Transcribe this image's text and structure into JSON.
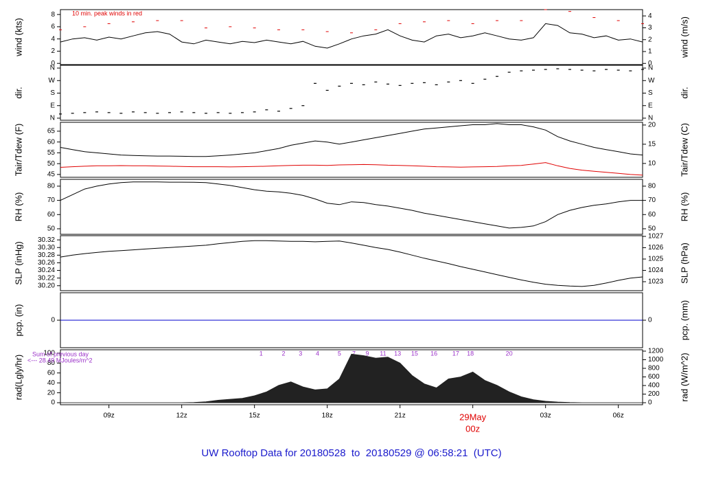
{
  "chart_data": {
    "title": "UW Rooftop Data for 20180528  to  20180529 @ 06:58:21  (UTC)",
    "xlim": [
      7,
      31
    ],
    "xticks": [
      {
        "value": 9,
        "label": "09z"
      },
      {
        "value": 12,
        "label": "12z"
      },
      {
        "value": 15,
        "label": "15z"
      },
      {
        "value": 18,
        "label": "18z"
      },
      {
        "value": 21,
        "label": "21z"
      },
      {
        "value": 24,
        "label": "00z"
      },
      {
        "value": 27,
        "label": "03z"
      },
      {
        "value": 30,
        "label": "06z"
      }
    ],
    "date_annotation": {
      "text": "29May",
      "x": 24,
      "color": "#e00000"
    },
    "x": [
      7,
      7.5,
      8,
      8.5,
      9,
      9.5,
      10,
      10.5,
      11,
      11.5,
      12,
      12.5,
      13,
      13.5,
      14,
      14.5,
      15,
      15.5,
      16,
      16.5,
      17,
      17.5,
      18,
      18.5,
      19,
      19.5,
      20,
      20.5,
      21,
      21.5,
      22,
      22.5,
      23,
      23.5,
      24,
      24.5,
      25,
      25.5,
      26,
      26.5,
      27,
      27.5,
      28,
      28.5,
      29,
      29.5,
      30,
      30.5,
      31
    ],
    "panels": [
      {
        "type": "line",
        "ylabel": "wind (kts)",
        "y2label": "wind (m/s)",
        "annotation": "10 min. peak winds in red",
        "ylim": [
          -0.2,
          8.8
        ],
        "yticks": [
          0,
          2,
          4,
          6,
          8
        ],
        "y2lim": [
          -0.1,
          4.53
        ],
        "y2ticks": [
          0,
          1,
          2,
          3,
          4
        ],
        "series": [
          {
            "type": "line",
            "color": "#000000",
            "values": [
              3.5,
              4,
              4.2,
              3.8,
              4.3,
              4,
              4.5,
              5,
              5.2,
              4.8,
              3.5,
              3.2,
              3.8,
              3.5,
              3.2,
              3.6,
              3.4,
              3.8,
              3.5,
              3.2,
              3.6,
              2.8,
              2.5,
              3.2,
              4,
              4.5,
              4.8,
              5.5,
              4.5,
              3.8,
              3.5,
              4.5,
              4.8,
              4.2,
              4.5,
              5,
              4.5,
              4,
              3.8,
              4.2,
              6.5,
              6.2,
              5,
              4.8,
              4.2,
              4.5,
              3.8,
              4,
              3.5
            ]
          },
          {
            "type": "points",
            "color": "#e00000",
            "x": [
              7,
              8,
              9,
              10,
              11,
              12,
              13,
              14,
              15,
              16,
              17,
              18,
              19,
              20,
              21,
              22,
              23,
              24,
              25,
              26,
              27,
              28,
              29,
              30,
              31
            ],
            "values": [
              5.5,
              6,
              6.5,
              6.8,
              7,
              7,
              5.8,
              6,
              5.8,
              5.5,
              5.5,
              5.2,
              5,
              5.5,
              6.5,
              6.8,
              7,
              6.5,
              7,
              7,
              8.8,
              8.5,
              7.5,
              7,
              6.5
            ]
          }
        ]
      },
      {
        "type": "scatter",
        "ylabel": "dir.",
        "y2label": "dir.",
        "ylim": [
          -15,
          380
        ],
        "yticks": [
          {
            "value": 0,
            "label": "N"
          },
          {
            "value": 90,
            "label": "E"
          },
          {
            "value": 180,
            "label": "S"
          },
          {
            "value": 270,
            "label": "W"
          },
          {
            "value": 360,
            "label": "N"
          }
        ],
        "y2lim": [
          -15,
          380
        ],
        "y2ticks": [
          {
            "value": 0,
            "label": "N"
          },
          {
            "value": 90,
            "label": "E"
          },
          {
            "value": 180,
            "label": "S"
          },
          {
            "value": 270,
            "label": "W"
          },
          {
            "value": 360,
            "label": "N"
          }
        ],
        "series": [
          {
            "type": "points",
            "color": "#000000",
            "values": [
              30,
              35,
              40,
              45,
              40,
              35,
              45,
              40,
              35,
              40,
              45,
              40,
              35,
              40,
              35,
              40,
              45,
              60,
              50,
              70,
              90,
              250,
              200,
              230,
              250,
              240,
              260,
              245,
              235,
              250,
              255,
              240,
              260,
              270,
              250,
              280,
              300,
              330,
              340,
              345,
              350,
              355,
              350,
              345,
              340,
              350,
              345,
              340,
              350
            ]
          }
        ]
      },
      {
        "type": "line",
        "ylabel": "Tair/Tdew (F)",
        "y2label": "Tair/Tdew (C)",
        "ylim": [
          43.7,
          69.1
        ],
        "yticks": [
          45,
          50,
          55,
          60,
          65
        ],
        "y2lim": [
          6.4,
          20.7
        ],
        "y2ticks": [
          10,
          15,
          20
        ],
        "series": [
          {
            "type": "line",
            "color": "#000000",
            "values": [
              57.5,
              56.5,
              55.5,
              55,
              54.5,
              54,
              53.8,
              53.6,
              53.5,
              53.5,
              53.4,
              53.3,
              53.3,
              53.6,
              54,
              54.5,
              55,
              56,
              57,
              58.5,
              59.5,
              60.5,
              60,
              59,
              60,
              61,
              62,
              63,
              64,
              65,
              66,
              66.5,
              67,
              67.5,
              68,
              68,
              68.5,
              68,
              68,
              67,
              65.5,
              62.5,
              60.5,
              59,
              57.5,
              56.5,
              55.5,
              54.5,
              54
            ]
          },
          {
            "type": "line",
            "color": "#e00000",
            "values": [
              48.3,
              48.6,
              48.8,
              49,
              49,
              49.1,
              49,
              49,
              48.9,
              48.8,
              48.7,
              48.6,
              48.6,
              48.6,
              48.5,
              48.6,
              48.7,
              48.8,
              49,
              49.2,
              49.3,
              49.3,
              49.2,
              49.4,
              49.5,
              49.6,
              49.5,
              49.3,
              49.2,
              49,
              48.8,
              48.6,
              48.5,
              48.4,
              48.5,
              48.6,
              48.7,
              49,
              49.2,
              49.8,
              50.5,
              49,
              47.8,
              47,
              46.5,
              46,
              45.5,
              45,
              44.7
            ]
          }
        ]
      },
      {
        "type": "line",
        "ylabel": "RH (%)",
        "y2label": "RH (%)",
        "ylim": [
          46.1,
          84.8
        ],
        "yticks": [
          50,
          60,
          70,
          80
        ],
        "y2lim": [
          46.1,
          84.8
        ],
        "y2ticks": [
          50,
          60,
          70,
          80
        ],
        "series": [
          {
            "type": "line",
            "color": "#000000",
            "values": [
              70,
              74,
              78,
              80,
              81.5,
              82.5,
              83,
              83,
              83,
              82.8,
              82.8,
              82.7,
              82.5,
              81.5,
              80.5,
              79,
              77.5,
              76.5,
              76,
              75,
              73.5,
              71,
              68,
              67,
              69,
              68.5,
              67,
              66,
              64.5,
              63,
              61,
              59.5,
              58,
              56.5,
              55,
              53.5,
              52,
              50.5,
              51,
              52,
              55,
              60,
              63,
              65,
              66.5,
              67.5,
              69,
              70,
              70
            ]
          }
        ]
      },
      {
        "type": "line",
        "ylabel": "SLP (inHg)",
        "y2label": "SLP (hPa)",
        "ylim": [
          30.187,
          30.331
        ],
        "yticks": [
          {
            "value": 30.2,
            "label": "30.20"
          },
          30.22,
          30.24,
          30.26,
          30.28,
          {
            "value": 30.3,
            "label": "30.30"
          },
          30.32
        ],
        "y2lim": [
          1022.21,
          1027.06
        ],
        "y2ticks": [
          1023,
          1024,
          1025,
          1026,
          1027
        ],
        "series": [
          {
            "type": "line",
            "color": "#000000",
            "values": [
              30.275,
              30.28,
              30.284,
              30.287,
              30.29,
              30.292,
              30.294,
              30.296,
              30.298,
              30.3,
              30.302,
              30.304,
              30.306,
              30.31,
              30.313,
              30.316,
              30.318,
              30.318,
              30.317,
              30.316,
              30.316,
              30.315,
              30.316,
              30.317,
              30.312,
              30.306,
              30.3,
              30.295,
              30.288,
              30.28,
              30.272,
              30.265,
              30.258,
              30.25,
              30.243,
              30.236,
              30.229,
              30.222,
              30.215,
              30.209,
              30.204,
              30.201,
              30.199,
              30.198,
              30.201,
              30.207,
              30.214,
              30.22,
              30.223
            ]
          }
        ]
      },
      {
        "type": "line",
        "ylabel": "pcp. (in)",
        "y2label": "pcp. (mm)",
        "ylim": [
          -1,
          1
        ],
        "yticks": [
          0
        ],
        "y2lim": [
          -1,
          1
        ],
        "y2ticks": [
          0
        ],
        "series": [
          {
            "type": "line",
            "color": "#0000cc",
            "values": [
              0,
              0,
              0,
              0,
              0,
              0,
              0,
              0,
              0,
              0,
              0,
              0,
              0,
              0,
              0,
              0,
              0,
              0,
              0,
              0,
              0,
              0,
              0,
              0,
              0,
              0,
              0,
              0,
              0,
              0,
              0,
              0,
              0,
              0,
              0,
              0,
              0,
              0,
              0,
              0,
              0,
              0,
              0,
              0,
              0,
              0,
              0,
              0,
              0
            ]
          }
        ]
      },
      {
        "type": "area",
        "ylabel": "rad(Lgly/hr)",
        "y2label": "rad (W/m^2)",
        "ylim": [
          -4.1,
          106.8
        ],
        "yticks": [
          0,
          20,
          40,
          60,
          80,
          100
        ],
        "y2lim": [
          -47,
          1232
        ],
        "y2ticks": [
          0,
          200,
          400,
          600,
          800,
          1000,
          1200
        ],
        "notes": [
          "Sum of previous day",
          "<--- 28.49 MJoules/m^2"
        ],
        "hour_marks": {
          "x": [
            15.27,
            16.2,
            16.9,
            17.6,
            18.5,
            19.1,
            19.65,
            20.3,
            20.9,
            21.6,
            22.4,
            23.3,
            23.9,
            25.5
          ],
          "labels": [
            1,
            2,
            3,
            4,
            5,
            7,
            9,
            11,
            13,
            15,
            16,
            17,
            18,
            20
          ]
        },
        "series": [
          {
            "type": "area",
            "color": "#222222",
            "values": [
              0,
              0,
              0,
              0,
              0,
              0,
              0,
              0,
              0,
              0,
              0,
              0.5,
              2,
              5,
              7,
              9,
              14,
              22,
              35,
              42,
              32,
              26,
              28,
              48,
              98,
              95,
              90,
              92,
              80,
              55,
              38,
              30,
              48,
              52,
              62,
              45,
              35,
              22,
              12,
              6,
              3,
              1.5,
              0.5,
              0,
              0,
              0,
              0,
              0,
              0
            ]
          }
        ]
      }
    ]
  }
}
